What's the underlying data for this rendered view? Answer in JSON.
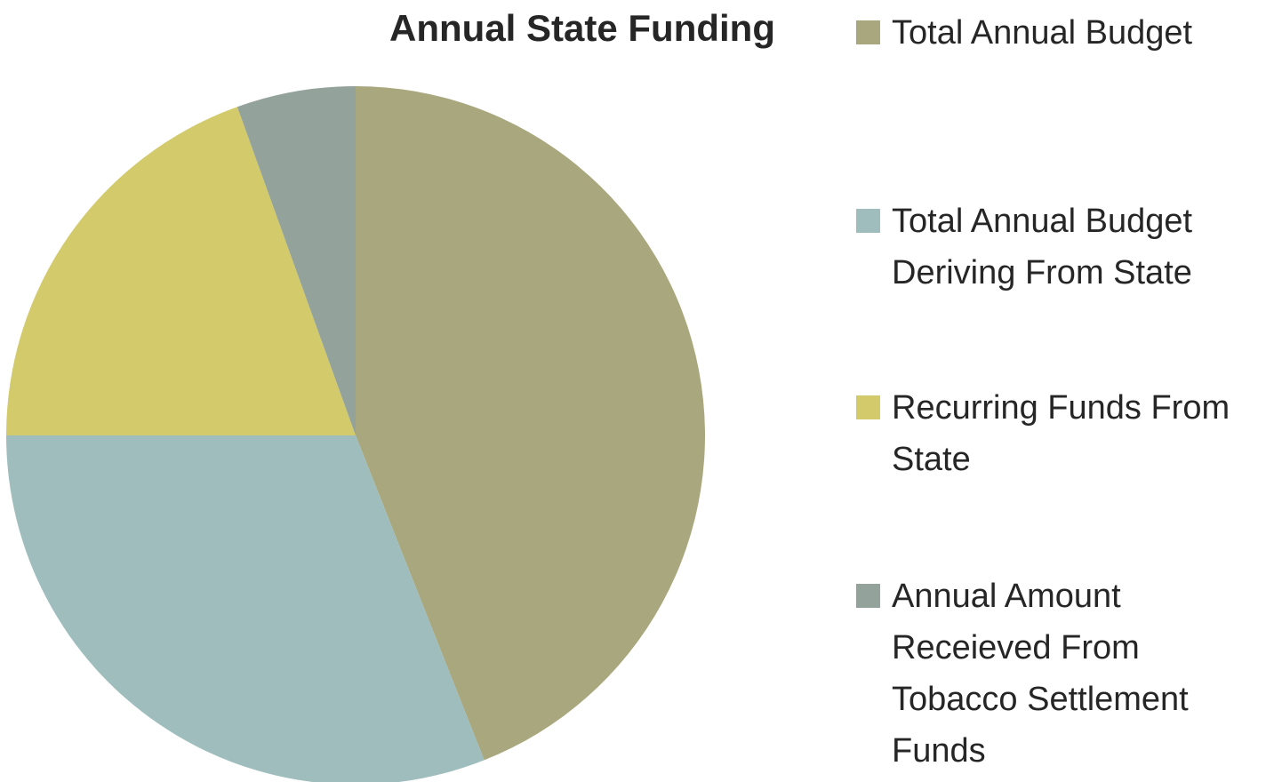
{
  "chart_data": {
    "type": "pie",
    "title": "Annual State Funding",
    "categories": [
      "Total Annual Budget",
      "Total Annual Budget Deriving From State",
      "Recurring Funds From State",
      "Annual Amount Receieved From Tobacco Settlement Funds"
    ],
    "values": [
      44,
      31,
      19.5,
      5.5
    ],
    "colors": [
      "#a9a77d",
      "#9fbdbd",
      "#d2ca6b",
      "#93a39c"
    ],
    "legend": "right"
  }
}
